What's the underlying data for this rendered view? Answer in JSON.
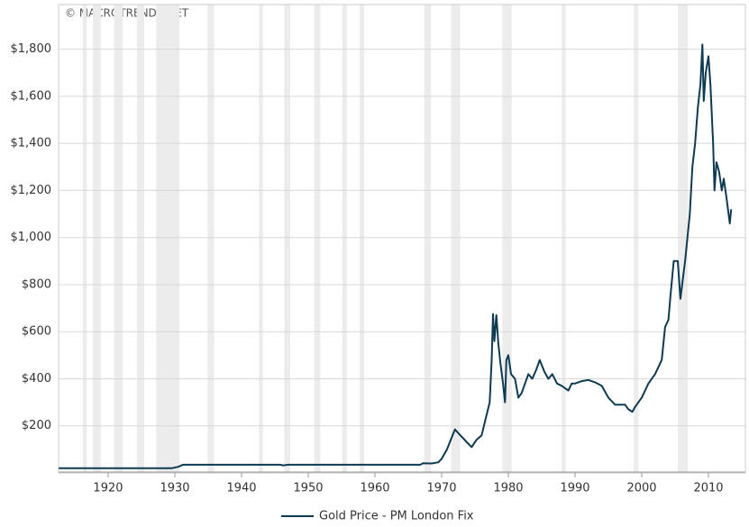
{
  "chart_data": {
    "type": "line",
    "source": "© MACROTRENDS.NET",
    "x": [
      1912.6,
      1929.5,
      1930.5,
      1931.2,
      1945.8,
      1946.2,
      1947,
      1966.8,
      1967.2,
      1968.5,
      1969.5,
      1970,
      1970.8,
      1971.5,
      1972,
      1972.8,
      1973.8,
      1974.5,
      1975.2,
      1976,
      1976.6,
      1977.2,
      1977.5,
      1977.7,
      1977.9,
      1978.2,
      1978.5,
      1978.8,
      1979.2,
      1979.5,
      1979.7,
      1980,
      1980.4,
      1981,
      1981.5,
      1982,
      1982.5,
      1983,
      1983.6,
      1984.2,
      1984.7,
      1985.4,
      1986,
      1986.6,
      1987.3,
      1988,
      1988.5,
      1989,
      1989.5,
      1990,
      1991,
      1992,
      1993,
      1994,
      1995,
      1996,
      1997.5,
      1998,
      1998.6,
      1999,
      1999.5,
      2000,
      2001,
      2002,
      2003,
      2003.5,
      2004,
      2004.3,
      2004.8,
      2005.4,
      2005.8,
      2006.5,
      2007.2,
      2007.6,
      2008,
      2008.4,
      2008.8,
      2009.1,
      2009.3,
      2009.6,
      2010,
      2010.3,
      2010.7,
      2010.9,
      2011.2,
      2011.6,
      2012,
      2012.3,
      2012.7,
      2013.2,
      2013.4
    ],
    "series": [
      {
        "name": "Gold Price - PM London Fix",
        "color": "#0e3a52",
        "values": [
          20,
          20,
          26,
          35,
          35,
          32,
          35,
          35,
          41,
          40,
          45,
          60,
          100,
          150,
          185,
          160,
          130,
          110,
          140,
          160,
          230,
          300,
          480,
          675,
          560,
          670,
          550,
          470,
          380,
          300,
          480,
          500,
          420,
          400,
          320,
          340,
          380,
          420,
          400,
          440,
          480,
          430,
          400,
          420,
          380,
          370,
          360,
          350,
          380,
          380,
          390,
          395,
          385,
          370,
          320,
          290,
          290,
          270,
          260,
          280,
          300,
          320,
          380,
          420,
          480,
          620,
          650,
          750,
          900,
          900,
          740,
          900,
          1100,
          1300,
          1400,
          1550,
          1650,
          1820,
          1580,
          1700,
          1770,
          1650,
          1400,
          1200,
          1320,
          1280,
          1200,
          1250,
          1170,
          1060,
          1120
        ]
      }
    ],
    "bands": [
      [
        1916.2,
        1916.8
      ],
      [
        1917.7,
        1918.9
      ],
      [
        1920.9,
        1922.2
      ],
      [
        1924.3,
        1925.4
      ],
      [
        1927.2,
        1930.7
      ],
      [
        1934.9,
        1935.9
      ],
      [
        1942.6,
        1943.2
      ],
      [
        1946.4,
        1947.3
      ],
      [
        1950.9,
        1951.8
      ],
      [
        1955.1,
        1955.8
      ],
      [
        1957.7,
        1958.4
      ],
      [
        1967.4,
        1968.4
      ],
      [
        1971.4,
        1972.8
      ],
      [
        1979.1,
        1980.5
      ],
      [
        1988,
        1988.6
      ],
      [
        1998.8,
        1999.5
      ],
      [
        2005.4,
        2006.9
      ]
    ],
    "band_color": "#ececec",
    "xlim": [
      1912.57,
      2015.54
    ],
    "ylim": [
      0,
      1990
    ],
    "xticks": [
      1920,
      1930,
      1940,
      1950,
      1960,
      1970,
      1980,
      1990,
      2000,
      2010
    ],
    "yticks": [
      {
        "value": 200,
        "label": "$200"
      },
      {
        "value": 400,
        "label": "$400"
      },
      {
        "value": 600,
        "label": "$600"
      },
      {
        "value": 800,
        "label": "$800"
      },
      {
        "value": 1000,
        "label": "$1,000"
      },
      {
        "value": 1200,
        "label": "$1,200"
      },
      {
        "value": 1400,
        "label": "$1,400"
      },
      {
        "value": 1600,
        "label": "$1,600"
      },
      {
        "value": 1800,
        "label": "$1,800"
      }
    ],
    "grid": true
  }
}
